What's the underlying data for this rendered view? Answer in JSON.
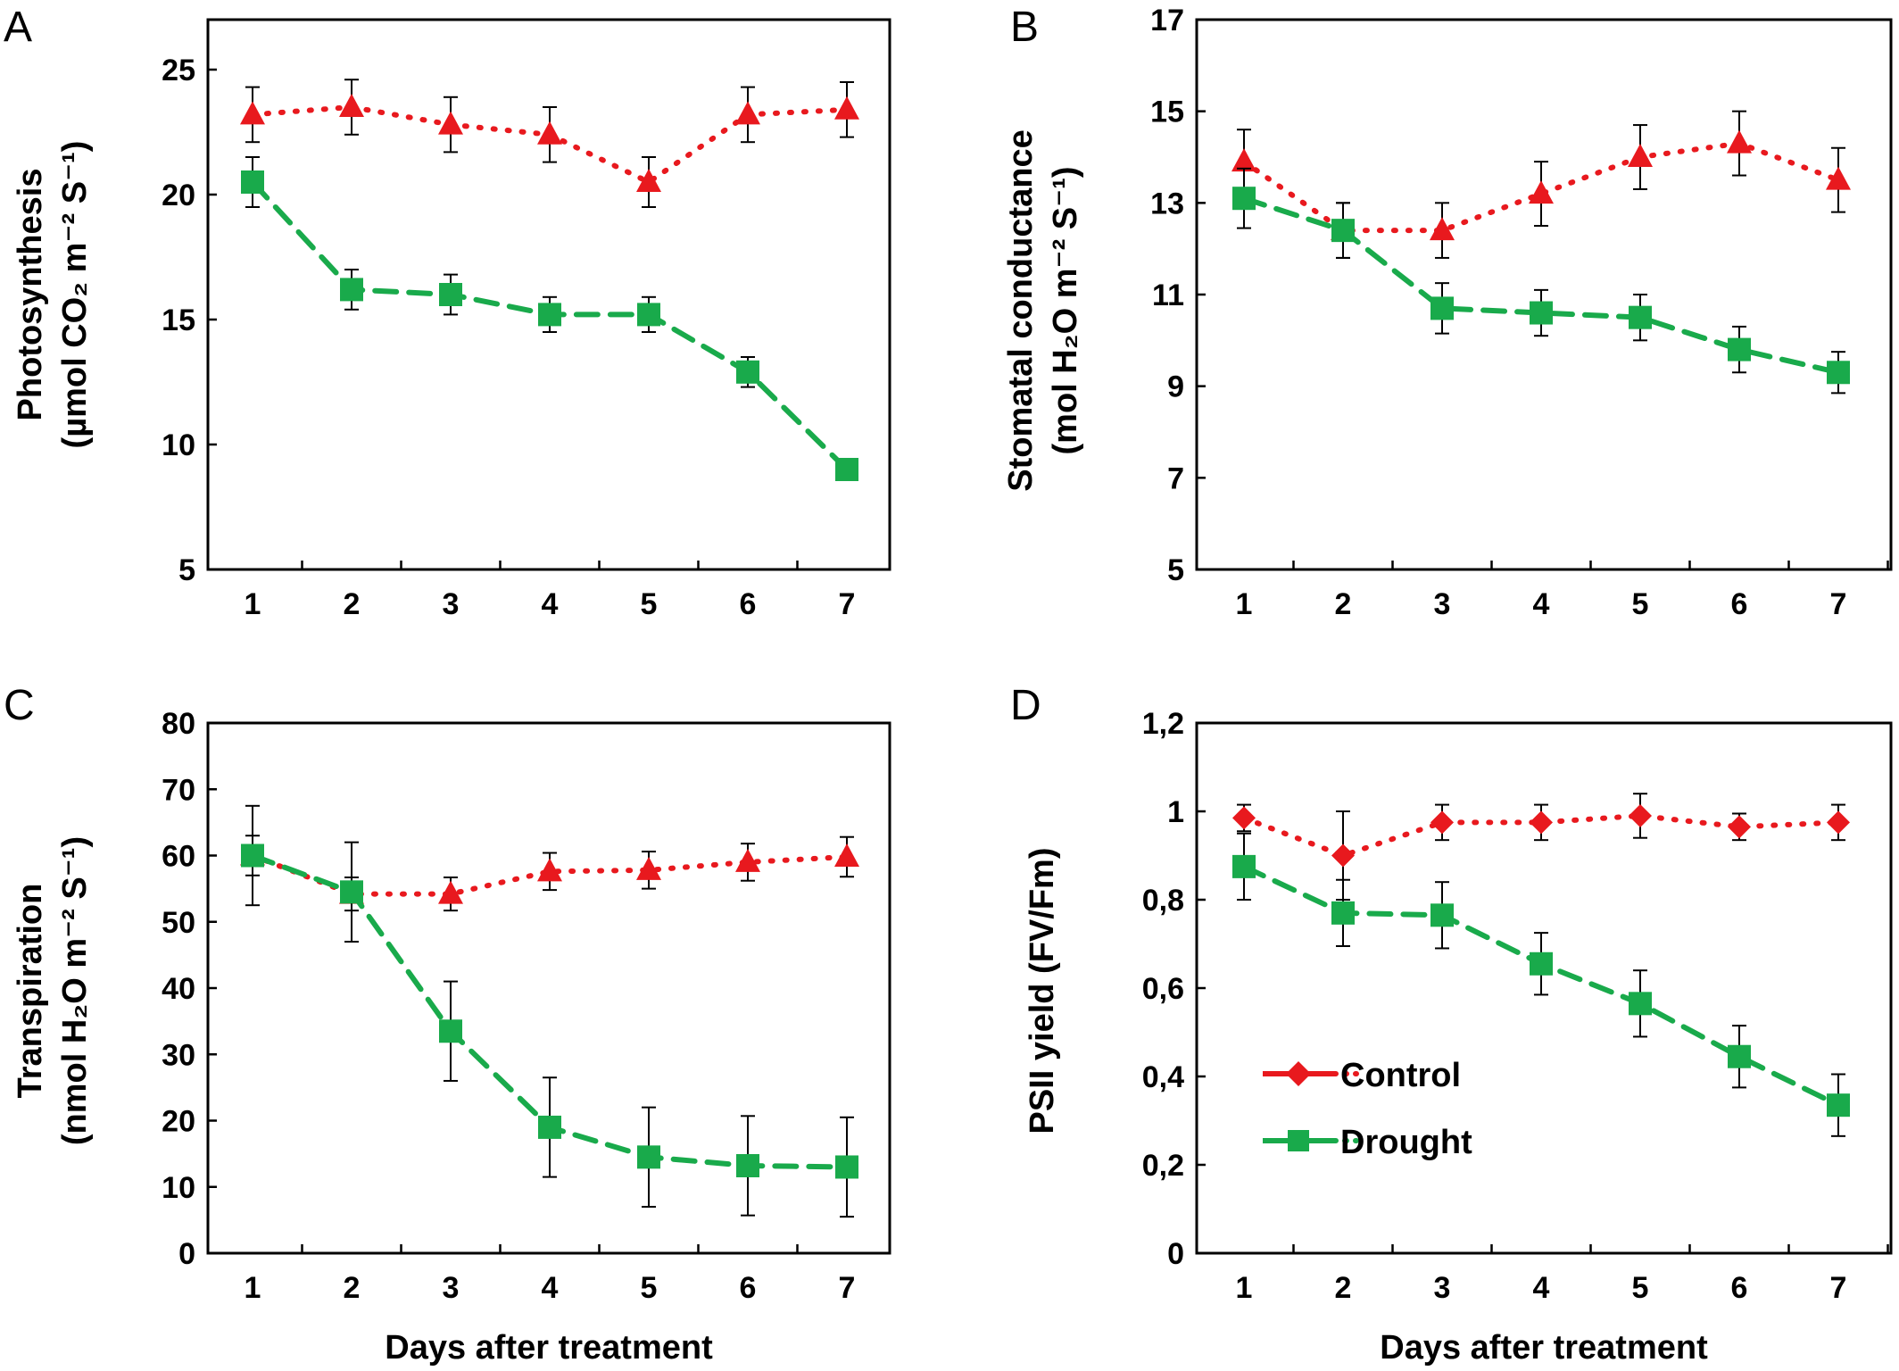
{
  "colors": {
    "Control": "#e8191e",
    "Drought": "#19aa4b"
  },
  "icons": {
    "Control": "red-diamond-line-icon",
    "Drought": "green-square-line-icon"
  },
  "legend": {
    "control_label": "Control",
    "drought_label": "Drought"
  },
  "chart_data": [
    {
      "panel": "A",
      "type": "line",
      "x": [
        1,
        2,
        3,
        4,
        5,
        6,
        7
      ],
      "xlabel": "",
      "ylabel_line1": "Photosynthesis",
      "ylabel_line2": "(µmol CO₂ m⁻² S⁻¹)",
      "ylim": [
        5,
        27
      ],
      "yticks": [
        5,
        10,
        15,
        20,
        25
      ],
      "ytick_labels": [
        "5",
        "10",
        "15",
        "20",
        "25"
      ],
      "grid": false,
      "series": [
        {
          "name": "Control",
          "marker": "triangle",
          "values": [
            23.2,
            23.5,
            22.8,
            22.4,
            20.5,
            23.2,
            23.4
          ],
          "errors": [
            1.1,
            1.1,
            1.1,
            1.1,
            1.0,
            1.1,
            1.1
          ]
        },
        {
          "name": "Drought",
          "marker": "square",
          "values": [
            20.5,
            16.2,
            16.0,
            15.2,
            15.2,
            12.9,
            9.0
          ],
          "errors": [
            1.0,
            0.8,
            0.8,
            0.7,
            0.7,
            0.6,
            0.3
          ]
        }
      ]
    },
    {
      "panel": "B",
      "type": "line",
      "x": [
        1,
        2,
        3,
        4,
        5,
        6,
        7
      ],
      "xlabel": "",
      "ylabel_line1": "Stomatal conductance",
      "ylabel_line2": "(mol H₂O m⁻² S⁻¹)",
      "ylim": [
        5,
        17
      ],
      "yticks": [
        5,
        7,
        9,
        11,
        13,
        15,
        17
      ],
      "ytick_labels": [
        "5",
        "7",
        "9",
        "11",
        "13",
        "15",
        "17"
      ],
      "grid": false,
      "series": [
        {
          "name": "Control",
          "marker": "triangle",
          "values": [
            13.9,
            12.4,
            12.4,
            13.2,
            14.0,
            14.3,
            13.5
          ],
          "errors": [
            0.7,
            0.6,
            0.6,
            0.7,
            0.7,
            0.7,
            0.7
          ]
        },
        {
          "name": "Drought",
          "marker": "square",
          "values": [
            13.1,
            12.4,
            10.7,
            10.6,
            10.5,
            9.8,
            9.3
          ],
          "errors": [
            0.65,
            0.6,
            0.55,
            0.5,
            0.5,
            0.5,
            0.45
          ]
        }
      ]
    },
    {
      "panel": "C",
      "type": "line",
      "x": [
        1,
        2,
        3,
        4,
        5,
        6,
        7
      ],
      "xlabel": "Days after treatment",
      "ylabel_line1": "Transpiration",
      "ylabel_line2": "(nmol H₂O m⁻² S⁻¹)",
      "ylim": [
        0,
        80
      ],
      "yticks": [
        0,
        10,
        20,
        30,
        40,
        50,
        60,
        70,
        80
      ],
      "ytick_labels": [
        "0",
        "10",
        "20",
        "30",
        "40",
        "50",
        "60",
        "70",
        "80"
      ],
      "grid": false,
      "series": [
        {
          "name": "Control",
          "marker": "triangle",
          "values": [
            60,
            54.2,
            54.2,
            57.6,
            57.8,
            59.0,
            59.8
          ],
          "errors": [
            3.0,
            2.5,
            2.5,
            2.8,
            2.8,
            2.8,
            3.0
          ]
        },
        {
          "name": "Drought",
          "marker": "square",
          "values": [
            60,
            54.5,
            33.5,
            19.0,
            14.5,
            13.2,
            13.0
          ],
          "errors": [
            7.5,
            7.5,
            7.5,
            7.5,
            7.5,
            7.5,
            7.5
          ]
        }
      ]
    },
    {
      "panel": "D",
      "type": "line",
      "x": [
        1,
        2,
        3,
        4,
        5,
        6,
        7
      ],
      "xlabel": "Days after treatment",
      "ylabel_line1": "PSII yield (FV/Fm)",
      "ylabel_line2": "",
      "ylim": [
        0,
        1.2
      ],
      "yticks": [
        0,
        0.2,
        0.4,
        0.6,
        0.8,
        1.0,
        1.2
      ],
      "ytick_labels": [
        "0",
        "0,2",
        "0,4",
        "0,6",
        "0,8",
        "1",
        "1,2"
      ],
      "grid": false,
      "legend_position": "bottom-left",
      "series": [
        {
          "name": "Control",
          "marker": "diamond",
          "values": [
            0.985,
            0.9,
            0.975,
            0.975,
            0.99,
            0.965,
            0.975
          ],
          "errors": [
            0.03,
            0.1,
            0.04,
            0.04,
            0.05,
            0.03,
            0.04
          ]
        },
        {
          "name": "Drought",
          "marker": "square",
          "values": [
            0.875,
            0.77,
            0.765,
            0.655,
            0.565,
            0.445,
            0.335
          ],
          "errors": [
            0.075,
            0.075,
            0.075,
            0.07,
            0.075,
            0.07,
            0.07
          ]
        }
      ]
    }
  ]
}
